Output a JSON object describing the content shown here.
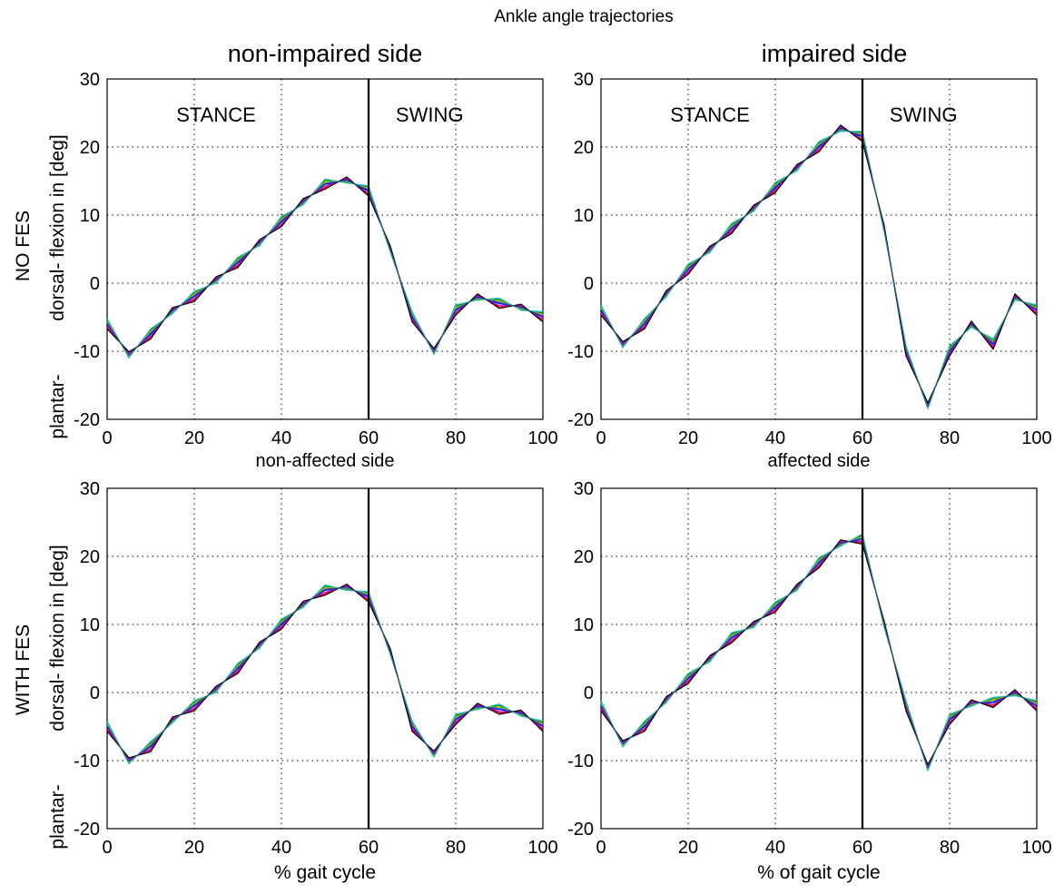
{
  "figure": {
    "suptitle": "Ankle angle trajectories",
    "col_titles": [
      "non-impaired side",
      "impaired side"
    ],
    "row_labels": [
      "NO FES",
      "WITH FES"
    ],
    "ylabel_line1": "dorsal- flexion in [deg]",
    "ylabel_line2": "plantar-",
    "phase_labels": [
      "STANCE",
      "SWING"
    ],
    "stance_swing_boundary": 60
  },
  "chart_data": [
    {
      "type": "line",
      "panel": "no-fes-non-impaired",
      "title": "",
      "subtitle": "non-affected side",
      "xlabel": "",
      "xlim": [
        0,
        100
      ],
      "ylim": [
        -20,
        30
      ],
      "xticks": [
        0,
        20,
        40,
        60,
        80,
        100
      ],
      "yticks": [
        -20,
        -10,
        0,
        10,
        20,
        30
      ],
      "grid": true,
      "phase_labels": [
        "STANCE",
        "SWING"
      ],
      "vline": 60,
      "series_colors": [
        "#0000ff",
        "#008000",
        "#ff0000",
        "#00bfbf",
        "#bf00bf",
        "#bfbf00",
        "#000000",
        "#1e5aa0"
      ],
      "series_offsets": [
        0,
        0.6,
        -0.5,
        0.8,
        -0.3,
        0.4,
        -0.7,
        0.2
      ],
      "x": [
        0,
        5,
        10,
        15,
        20,
        25,
        30,
        35,
        40,
        45,
        50,
        55,
        60,
        65,
        70,
        75,
        80,
        85,
        90,
        95,
        100
      ],
      "y": [
        -6,
        -10.5,
        -7.5,
        -4,
        -2,
        0.5,
        3,
        6,
        9,
        12,
        14.5,
        15.2,
        13.5,
        5,
        -5,
        -10,
        -4,
        -2,
        -3,
        -3.5,
        -5
      ]
    },
    {
      "type": "line",
      "panel": "no-fes-impaired",
      "title": "",
      "subtitle": "affected side",
      "xlabel": "",
      "xlim": [
        0,
        100
      ],
      "ylim": [
        -20,
        30
      ],
      "xticks": [
        0,
        20,
        40,
        60,
        80,
        100
      ],
      "yticks": [
        -20,
        -10,
        0,
        10,
        20,
        30
      ],
      "grid": true,
      "phase_labels": [
        "STANCE",
        "SWING"
      ],
      "vline": 60,
      "series_colors": [
        "#0000ff",
        "#008000",
        "#ff0000",
        "#00bfbf",
        "#bf00bf",
        "#bfbf00",
        "#000000",
        "#1e5aa0"
      ],
      "series_offsets": [
        0,
        0.6,
        -0.5,
        0.8,
        -0.3,
        0.4,
        -0.7,
        0.2
      ],
      "x": [
        0,
        5,
        10,
        15,
        20,
        25,
        30,
        35,
        40,
        45,
        50,
        55,
        60,
        65,
        70,
        75,
        80,
        85,
        90,
        95,
        100
      ],
      "y": [
        -4,
        -9,
        -6,
        -1.5,
        2,
        5,
        8,
        11,
        14,
        17,
        20,
        22.8,
        21.5,
        8,
        -10,
        -18,
        -10,
        -6,
        -9,
        -2,
        -4
      ]
    },
    {
      "type": "line",
      "panel": "with-fes-non-impaired",
      "title": "",
      "subtitle": "",
      "xlabel": "% gait cycle",
      "xlim": [
        0,
        100
      ],
      "ylim": [
        -20,
        30
      ],
      "xticks": [
        0,
        20,
        40,
        60,
        80,
        100
      ],
      "yticks": [
        -20,
        -10,
        0,
        10,
        20,
        30
      ],
      "grid": true,
      "phase_labels": [],
      "vline": 60,
      "series_colors": [
        "#0000ff",
        "#008000",
        "#ff0000",
        "#00bfbf",
        "#bf00bf",
        "#bfbf00",
        "#000000",
        "#1e5aa0"
      ],
      "series_offsets": [
        0,
        0.6,
        -0.5,
        0.8,
        -0.3,
        0.4,
        -0.7,
        0.2
      ],
      "x": [
        0,
        5,
        10,
        15,
        20,
        25,
        30,
        35,
        40,
        45,
        50,
        55,
        60,
        65,
        70,
        75,
        80,
        85,
        90,
        95,
        100
      ],
      "y": [
        -5,
        -10,
        -8,
        -4,
        -2,
        0.5,
        3.5,
        7,
        10,
        13,
        15,
        15.5,
        14,
        6,
        -5,
        -9,
        -4,
        -2,
        -2.5,
        -3,
        -5
      ]
    },
    {
      "type": "line",
      "panel": "with-fes-impaired",
      "title": "",
      "subtitle": "",
      "xlabel": "% of gait cycle",
      "xlim": [
        0,
        100
      ],
      "ylim": [
        -20,
        30
      ],
      "xticks": [
        0,
        20,
        40,
        60,
        80,
        100
      ],
      "yticks": [
        -20,
        -10,
        0,
        10,
        20,
        30
      ],
      "grid": true,
      "phase_labels": [],
      "vline": 60,
      "series_colors": [
        "#0000ff",
        "#008000",
        "#ff0000",
        "#00bfbf",
        "#bf00bf",
        "#bfbf00",
        "#000000",
        "#1e5aa0"
      ],
      "series_offsets": [
        0,
        0.6,
        -0.5,
        0.8,
        -0.3,
        0.4,
        -0.7,
        0.2
      ],
      "x": [
        0,
        5,
        10,
        15,
        20,
        25,
        30,
        35,
        40,
        45,
        50,
        55,
        60,
        65,
        70,
        75,
        80,
        85,
        90,
        95,
        100
      ],
      "y": [
        -2,
        -7.5,
        -5,
        -1,
        2,
        5,
        8,
        10,
        12.5,
        15.5,
        19,
        22,
        22.5,
        10,
        -2,
        -11,
        -4,
        -1.5,
        -1.5,
        0,
        -2
      ]
    }
  ]
}
